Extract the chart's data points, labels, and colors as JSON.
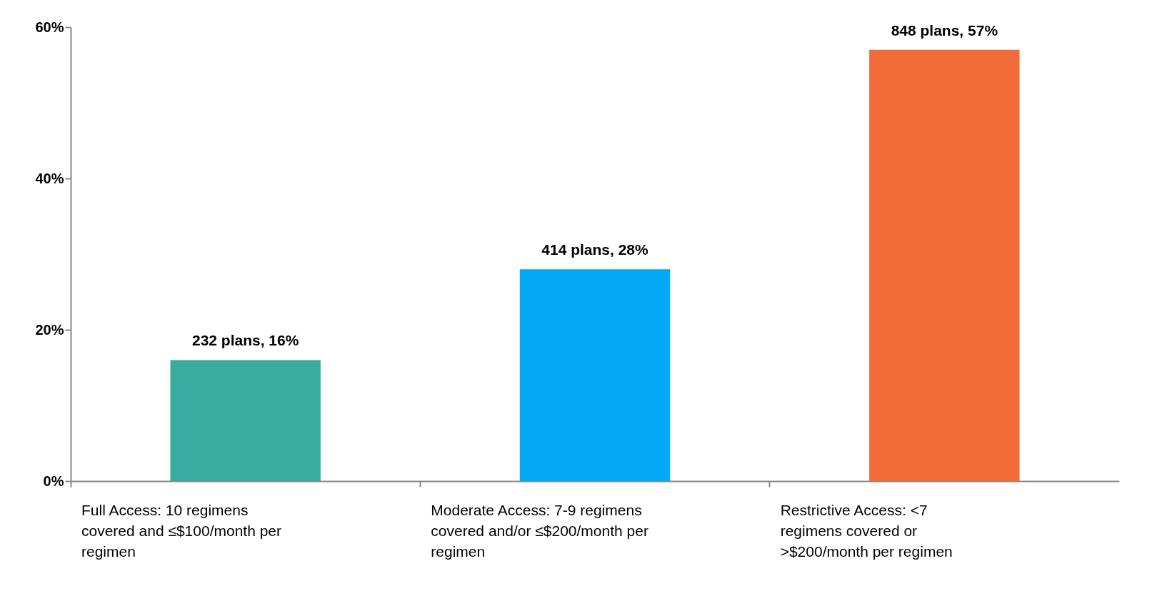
{
  "chart_data": {
    "type": "bar",
    "categories": [
      "Full Access: 10 regimens covered and ≤$100/month per regimen",
      "Moderate Access: 7-9 regimens covered and/or ≤$200/month per regimen",
      "Restrictive Access: <7 regimens covered or >$200/month per regimen"
    ],
    "values": [
      16,
      28,
      57
    ],
    "colors": [
      "#3aab9f",
      "#03a9f4",
      "#f26c3a"
    ],
    "value_labels": [
      "232 plans, 16%",
      "414 plans, 28%",
      "848 plans, 57%"
    ],
    "ylim": [
      0,
      60
    ],
    "yticks": [
      {
        "value": 0,
        "label": "0%"
      },
      {
        "value": 20,
        "label": "20%"
      },
      {
        "value": 40,
        "label": "40%"
      },
      {
        "value": 60,
        "label": "60%"
      }
    ],
    "grid": false
  }
}
